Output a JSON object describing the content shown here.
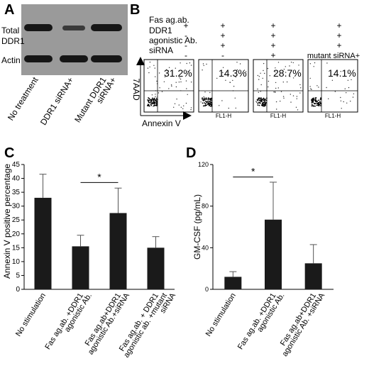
{
  "panelA": {
    "letter": "A",
    "row_labels": [
      "Total",
      "DDR1",
      "Actin"
    ],
    "lanes": [
      "No treatment",
      "DDR1 siRNA+",
      "Mutant DDR1",
      "siRNA+"
    ]
  },
  "panelB": {
    "letter": "B",
    "condition_labels": [
      "Fas ag.ab.",
      "DDR1",
      "agonistic Ab.",
      "siRNA"
    ],
    "columns": [
      {
        "fas": "+",
        "ddr1": "-",
        "sirna": "-",
        "percent": "31.2%"
      },
      {
        "fas": "+",
        "ddr1": "+",
        "sirna": "-",
        "percent": "14.3%"
      },
      {
        "fas": "+",
        "ddr1": "+",
        "sirna": "+",
        "percent": "28.7%"
      },
      {
        "fas": "+",
        "ddr1": "+",
        "sirna": "mutant siRNA+",
        "percent": "14.1%"
      }
    ],
    "y_axis_label": "7AAD",
    "x_axis_label": "Annexin V",
    "fl_label": "FL1-H"
  },
  "panelC": {
    "letter": "C",
    "chart_data": {
      "type": "bar",
      "ylabel": "Annexin V positive percentage",
      "ylim": [
        0,
        45
      ],
      "yticks": [
        0,
        5,
        10,
        15,
        20,
        25,
        30,
        35,
        40,
        45
      ],
      "categories": [
        "No stimulation",
        "Fas ag.ab.+DDR1 agonistic Ab.",
        "Fas ag.ab+DDR1 agonistic Ab.+siRNA",
        "Fas ag.ab.+ DDR1 agonistic ab.+mutant siRNA"
      ],
      "category_lines": [
        [
          "No stimulation"
        ],
        [
          "Fas ag.ab. +DDR1",
          "agonistic Ab."
        ],
        [
          "Fas ag.ab+DDR1",
          "agonistic Ab.+siRNA"
        ],
        [
          "Fas ag.ab. + DDR1",
          "agonistic ab. +mutant",
          "siRNA"
        ]
      ],
      "values": [
        33,
        15.5,
        27.5,
        15
      ],
      "errors": [
        8.5,
        4,
        9,
        4
      ],
      "significance": {
        "from": 1,
        "to": 2,
        "label": "*"
      }
    }
  },
  "panelD": {
    "letter": "D",
    "chart_data": {
      "type": "bar",
      "ylabel": "GM-CSF (pg/mL)",
      "ylim": [
        0,
        120
      ],
      "yticks": [
        0,
        40,
        80,
        120
      ],
      "categories": [
        "No stimulation",
        "Fas ag.ab.+DDR1 agonistic Ab.",
        "Fas ag.ab+DDR1 agonistic Ab.+siRNA"
      ],
      "category_lines": [
        [
          "No stimulation"
        ],
        [
          "Fas ag.ab. +DDR1",
          "agonistic Ab."
        ],
        [
          "Fas ag.ab+DDR1",
          "agonistic Ab. +siRNA"
        ]
      ],
      "values": [
        12,
        67,
        25
      ],
      "errors": [
        5,
        36,
        18
      ],
      "significance": {
        "from": 0,
        "to": 1,
        "label": "*"
      }
    }
  }
}
